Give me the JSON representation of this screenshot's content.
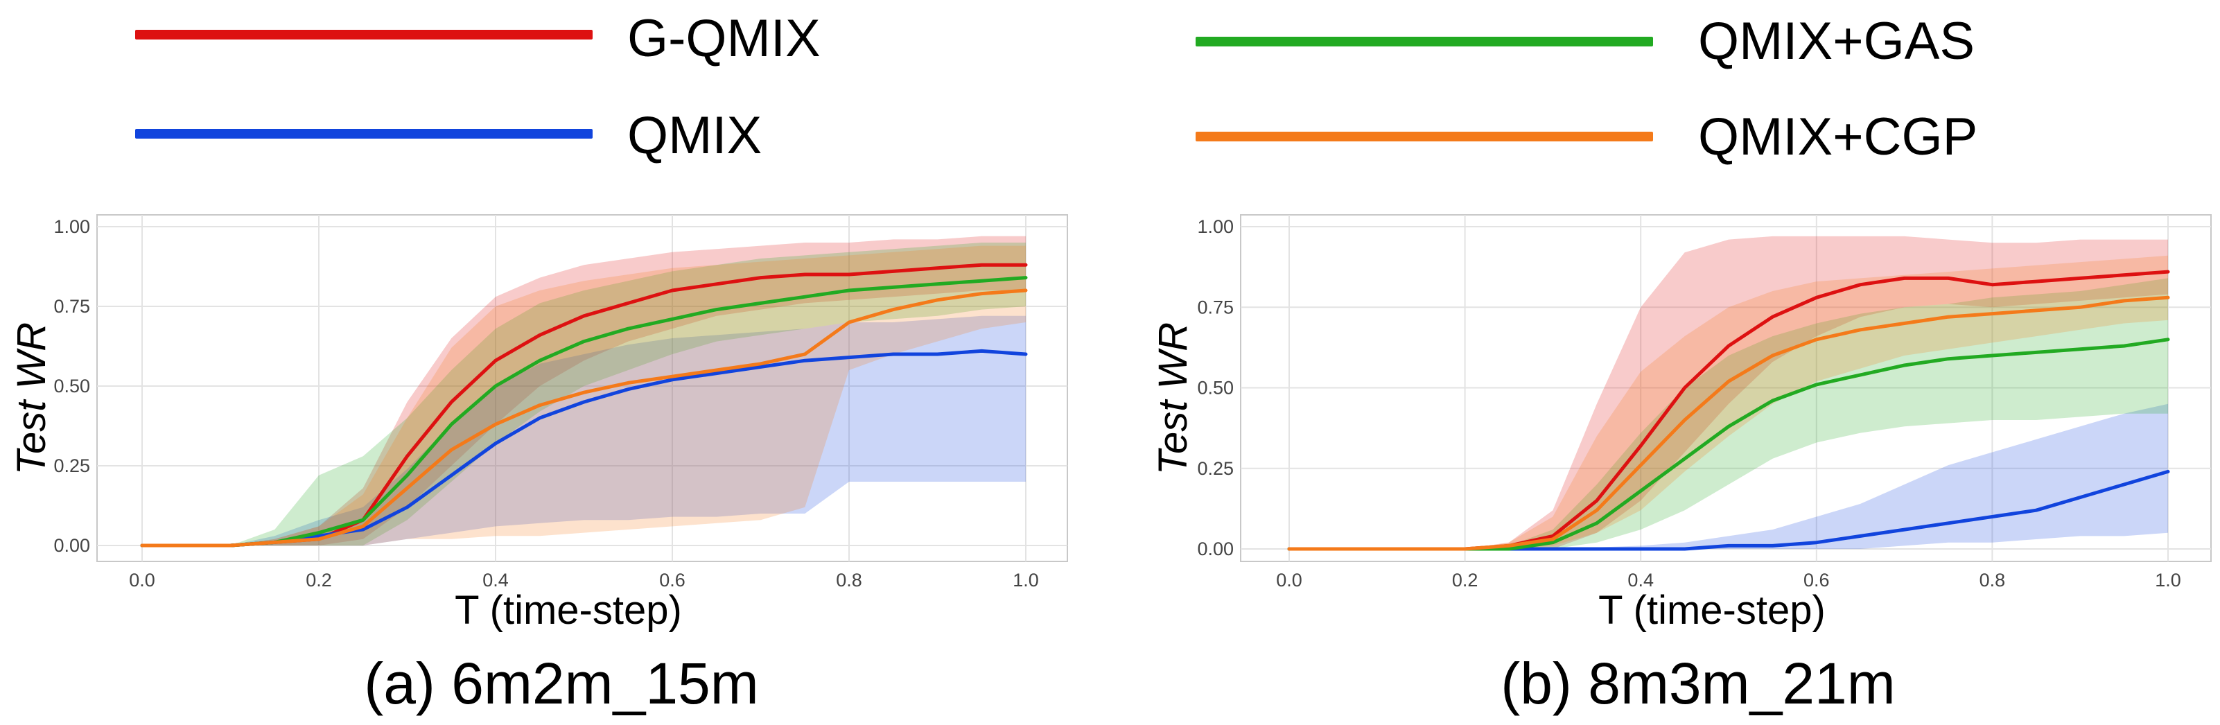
{
  "legend": {
    "items": [
      {
        "label": "G-QMIX",
        "color": "#dd1111"
      },
      {
        "label": "QMIX",
        "color": "#1144dd"
      },
      {
        "label": "QMIX+GAS",
        "color": "#22aa22"
      },
      {
        "label": "QMIX+CGP",
        "color": "#f47a1a"
      }
    ]
  },
  "chart_data": [
    {
      "type": "line",
      "caption": "(a) 6m2m_15m",
      "xlabel": "T (time-step)",
      "ylabel": "Test WR",
      "xlim": [
        0.0,
        1.0
      ],
      "ylim": [
        0.0,
        1.0
      ],
      "xticks": [
        "0.0",
        "0.2",
        "0.4",
        "0.6",
        "0.8",
        "1.0"
      ],
      "yticks": [
        "0.00",
        "0.25",
        "0.50",
        "0.75",
        "1.00"
      ],
      "grid": true,
      "series": [
        {
          "name": "G-QMIX",
          "color": "#dd1111",
          "x": [
            0,
            0.1,
            0.15,
            0.2,
            0.25,
            0.3,
            0.35,
            0.4,
            0.45,
            0.5,
            0.55,
            0.6,
            0.65,
            0.7,
            0.75,
            0.8,
            0.85,
            0.9,
            0.95,
            1.0
          ],
          "y": [
            0,
            0,
            0.01,
            0.02,
            0.08,
            0.28,
            0.45,
            0.58,
            0.66,
            0.72,
            0.76,
            0.8,
            0.82,
            0.84,
            0.85,
            0.85,
            0.86,
            0.87,
            0.88,
            0.88
          ],
          "lo": [
            0,
            0,
            0,
            0,
            0.02,
            0.12,
            0.25,
            0.38,
            0.5,
            0.58,
            0.64,
            0.68,
            0.72,
            0.74,
            0.76,
            0.77,
            0.78,
            0.79,
            0.8,
            0.8
          ],
          "hi": [
            0,
            0,
            0.02,
            0.06,
            0.18,
            0.45,
            0.65,
            0.78,
            0.84,
            0.88,
            0.9,
            0.92,
            0.93,
            0.94,
            0.95,
            0.95,
            0.96,
            0.96,
            0.97,
            0.97
          ]
        },
        {
          "name": "QMIX",
          "color": "#1144dd",
          "x": [
            0,
            0.1,
            0.15,
            0.2,
            0.25,
            0.3,
            0.35,
            0.4,
            0.45,
            0.5,
            0.55,
            0.6,
            0.65,
            0.7,
            0.75,
            0.8,
            0.85,
            0.9,
            0.95,
            1.0
          ],
          "y": [
            0,
            0,
            0.01,
            0.03,
            0.05,
            0.12,
            0.22,
            0.32,
            0.4,
            0.45,
            0.49,
            0.52,
            0.54,
            0.56,
            0.58,
            0.59,
            0.6,
            0.6,
            0.61,
            0.6
          ],
          "lo": [
            0,
            0,
            0,
            0,
            0,
            0.02,
            0.04,
            0.06,
            0.07,
            0.08,
            0.08,
            0.09,
            0.09,
            0.1,
            0.1,
            0.2,
            0.2,
            0.2,
            0.2,
            0.2
          ],
          "hi": [
            0,
            0,
            0.03,
            0.08,
            0.12,
            0.24,
            0.38,
            0.5,
            0.57,
            0.6,
            0.63,
            0.65,
            0.66,
            0.67,
            0.68,
            0.7,
            0.7,
            0.71,
            0.72,
            0.72
          ]
        },
        {
          "name": "QMIX+GAS",
          "color": "#22aa22",
          "x": [
            0,
            0.1,
            0.15,
            0.2,
            0.25,
            0.3,
            0.35,
            0.4,
            0.45,
            0.5,
            0.55,
            0.6,
            0.65,
            0.7,
            0.75,
            0.8,
            0.85,
            0.9,
            0.95,
            1.0
          ],
          "y": [
            0,
            0,
            0.01,
            0.04,
            0.08,
            0.22,
            0.38,
            0.5,
            0.58,
            0.64,
            0.68,
            0.71,
            0.74,
            0.76,
            0.78,
            0.8,
            0.81,
            0.82,
            0.83,
            0.84
          ],
          "lo": [
            0,
            0,
            0,
            0,
            0,
            0.08,
            0.2,
            0.32,
            0.42,
            0.5,
            0.55,
            0.6,
            0.64,
            0.66,
            0.68,
            0.7,
            0.71,
            0.72,
            0.74,
            0.75
          ],
          "hi": [
            0,
            0,
            0.05,
            0.22,
            0.28,
            0.4,
            0.55,
            0.68,
            0.76,
            0.8,
            0.83,
            0.86,
            0.88,
            0.9,
            0.91,
            0.92,
            0.93,
            0.94,
            0.95,
            0.95
          ]
        },
        {
          "name": "QMIX+CGP",
          "color": "#f47a1a",
          "x": [
            0,
            0.1,
            0.15,
            0.2,
            0.25,
            0.3,
            0.35,
            0.4,
            0.45,
            0.5,
            0.55,
            0.6,
            0.65,
            0.7,
            0.75,
            0.8,
            0.85,
            0.9,
            0.95,
            1.0
          ],
          "y": [
            0,
            0,
            0.01,
            0.02,
            0.06,
            0.18,
            0.3,
            0.38,
            0.44,
            0.48,
            0.51,
            0.53,
            0.55,
            0.57,
            0.6,
            0.7,
            0.74,
            0.77,
            0.79,
            0.8
          ],
          "lo": [
            0,
            0,
            0,
            0,
            0,
            0.02,
            0.02,
            0.03,
            0.03,
            0.04,
            0.05,
            0.06,
            0.07,
            0.08,
            0.12,
            0.55,
            0.6,
            0.64,
            0.68,
            0.7
          ],
          "hi": [
            0,
            0,
            0.02,
            0.06,
            0.16,
            0.4,
            0.62,
            0.75,
            0.8,
            0.83,
            0.85,
            0.87,
            0.88,
            0.89,
            0.9,
            0.91,
            0.92,
            0.93,
            0.94,
            0.94
          ]
        }
      ]
    },
    {
      "type": "line",
      "caption": "(b) 8m3m_21m",
      "xlabel": "T (time-step)",
      "ylabel": "Test WR",
      "xlim": [
        0.0,
        1.0
      ],
      "ylim": [
        0.0,
        1.0
      ],
      "xticks": [
        "0.0",
        "0.2",
        "0.4",
        "0.6",
        "0.8",
        "1.0"
      ],
      "yticks": [
        "0.00",
        "0.25",
        "0.50",
        "0.75",
        "1.00"
      ],
      "grid": true,
      "series": [
        {
          "name": "G-QMIX",
          "color": "#dd1111",
          "x": [
            0,
            0.1,
            0.2,
            0.25,
            0.3,
            0.35,
            0.4,
            0.45,
            0.5,
            0.55,
            0.6,
            0.65,
            0.7,
            0.75,
            0.8,
            0.85,
            0.9,
            0.95,
            1.0
          ],
          "y": [
            0,
            0,
            0,
            0.01,
            0.04,
            0.15,
            0.32,
            0.5,
            0.63,
            0.72,
            0.78,
            0.82,
            0.84,
            0.84,
            0.82,
            0.83,
            0.84,
            0.85,
            0.86
          ],
          "lo": [
            0,
            0,
            0,
            0,
            0,
            0.05,
            0.15,
            0.3,
            0.45,
            0.58,
            0.66,
            0.72,
            0.75,
            0.76,
            0.75,
            0.76,
            0.77,
            0.78,
            0.79
          ],
          "hi": [
            0,
            0,
            0,
            0.02,
            0.12,
            0.45,
            0.75,
            0.92,
            0.96,
            0.97,
            0.97,
            0.97,
            0.97,
            0.96,
            0.95,
            0.95,
            0.96,
            0.96,
            0.96
          ]
        },
        {
          "name": "QMIX",
          "color": "#1144dd",
          "x": [
            0,
            0.1,
            0.2,
            0.3,
            0.4,
            0.45,
            0.5,
            0.55,
            0.6,
            0.65,
            0.7,
            0.75,
            0.8,
            0.85,
            0.9,
            0.95,
            1.0
          ],
          "y": [
            0,
            0,
            0,
            0,
            0,
            0,
            0.01,
            0.01,
            0.02,
            0.04,
            0.06,
            0.08,
            0.1,
            0.12,
            0.16,
            0.2,
            0.24
          ],
          "lo": [
            0,
            0,
            0,
            0,
            0,
            0,
            0,
            0,
            0,
            0,
            0.01,
            0.02,
            0.02,
            0.03,
            0.04,
            0.04,
            0.05
          ],
          "hi": [
            0,
            0,
            0,
            0,
            0.01,
            0.02,
            0.04,
            0.06,
            0.1,
            0.14,
            0.2,
            0.26,
            0.3,
            0.34,
            0.38,
            0.42,
            0.45
          ]
        },
        {
          "name": "QMIX+GAS",
          "color": "#22aa22",
          "x": [
            0,
            0.1,
            0.2,
            0.25,
            0.3,
            0.35,
            0.4,
            0.45,
            0.5,
            0.55,
            0.6,
            0.65,
            0.7,
            0.75,
            0.8,
            0.85,
            0.9,
            0.95,
            1.0
          ],
          "y": [
            0,
            0,
            0,
            0,
            0.02,
            0.08,
            0.18,
            0.28,
            0.38,
            0.46,
            0.51,
            0.54,
            0.57,
            0.59,
            0.6,
            0.61,
            0.62,
            0.63,
            0.65
          ],
          "lo": [
            0,
            0,
            0,
            0,
            0,
            0.02,
            0.06,
            0.12,
            0.2,
            0.28,
            0.33,
            0.36,
            0.38,
            0.39,
            0.4,
            0.4,
            0.41,
            0.42,
            0.42
          ],
          "hi": [
            0,
            0,
            0,
            0.01,
            0.06,
            0.2,
            0.36,
            0.5,
            0.6,
            0.66,
            0.7,
            0.73,
            0.75,
            0.76,
            0.78,
            0.79,
            0.8,
            0.82,
            0.84
          ]
        },
        {
          "name": "QMIX+CGP",
          "color": "#f47a1a",
          "x": [
            0,
            0.1,
            0.2,
            0.25,
            0.3,
            0.35,
            0.4,
            0.45,
            0.5,
            0.55,
            0.6,
            0.65,
            0.7,
            0.75,
            0.8,
            0.85,
            0.9,
            0.95,
            1.0
          ],
          "y": [
            0,
            0,
            0,
            0.01,
            0.03,
            0.12,
            0.26,
            0.4,
            0.52,
            0.6,
            0.65,
            0.68,
            0.7,
            0.72,
            0.73,
            0.74,
            0.75,
            0.77,
            0.78
          ],
          "lo": [
            0,
            0,
            0,
            0,
            0.01,
            0.05,
            0.12,
            0.24,
            0.35,
            0.45,
            0.52,
            0.56,
            0.6,
            0.62,
            0.64,
            0.66,
            0.68,
            0.7,
            0.71
          ],
          "hi": [
            0,
            0,
            0,
            0.02,
            0.1,
            0.35,
            0.55,
            0.66,
            0.75,
            0.8,
            0.83,
            0.84,
            0.85,
            0.86,
            0.87,
            0.88,
            0.89,
            0.9,
            0.91
          ]
        }
      ]
    }
  ]
}
